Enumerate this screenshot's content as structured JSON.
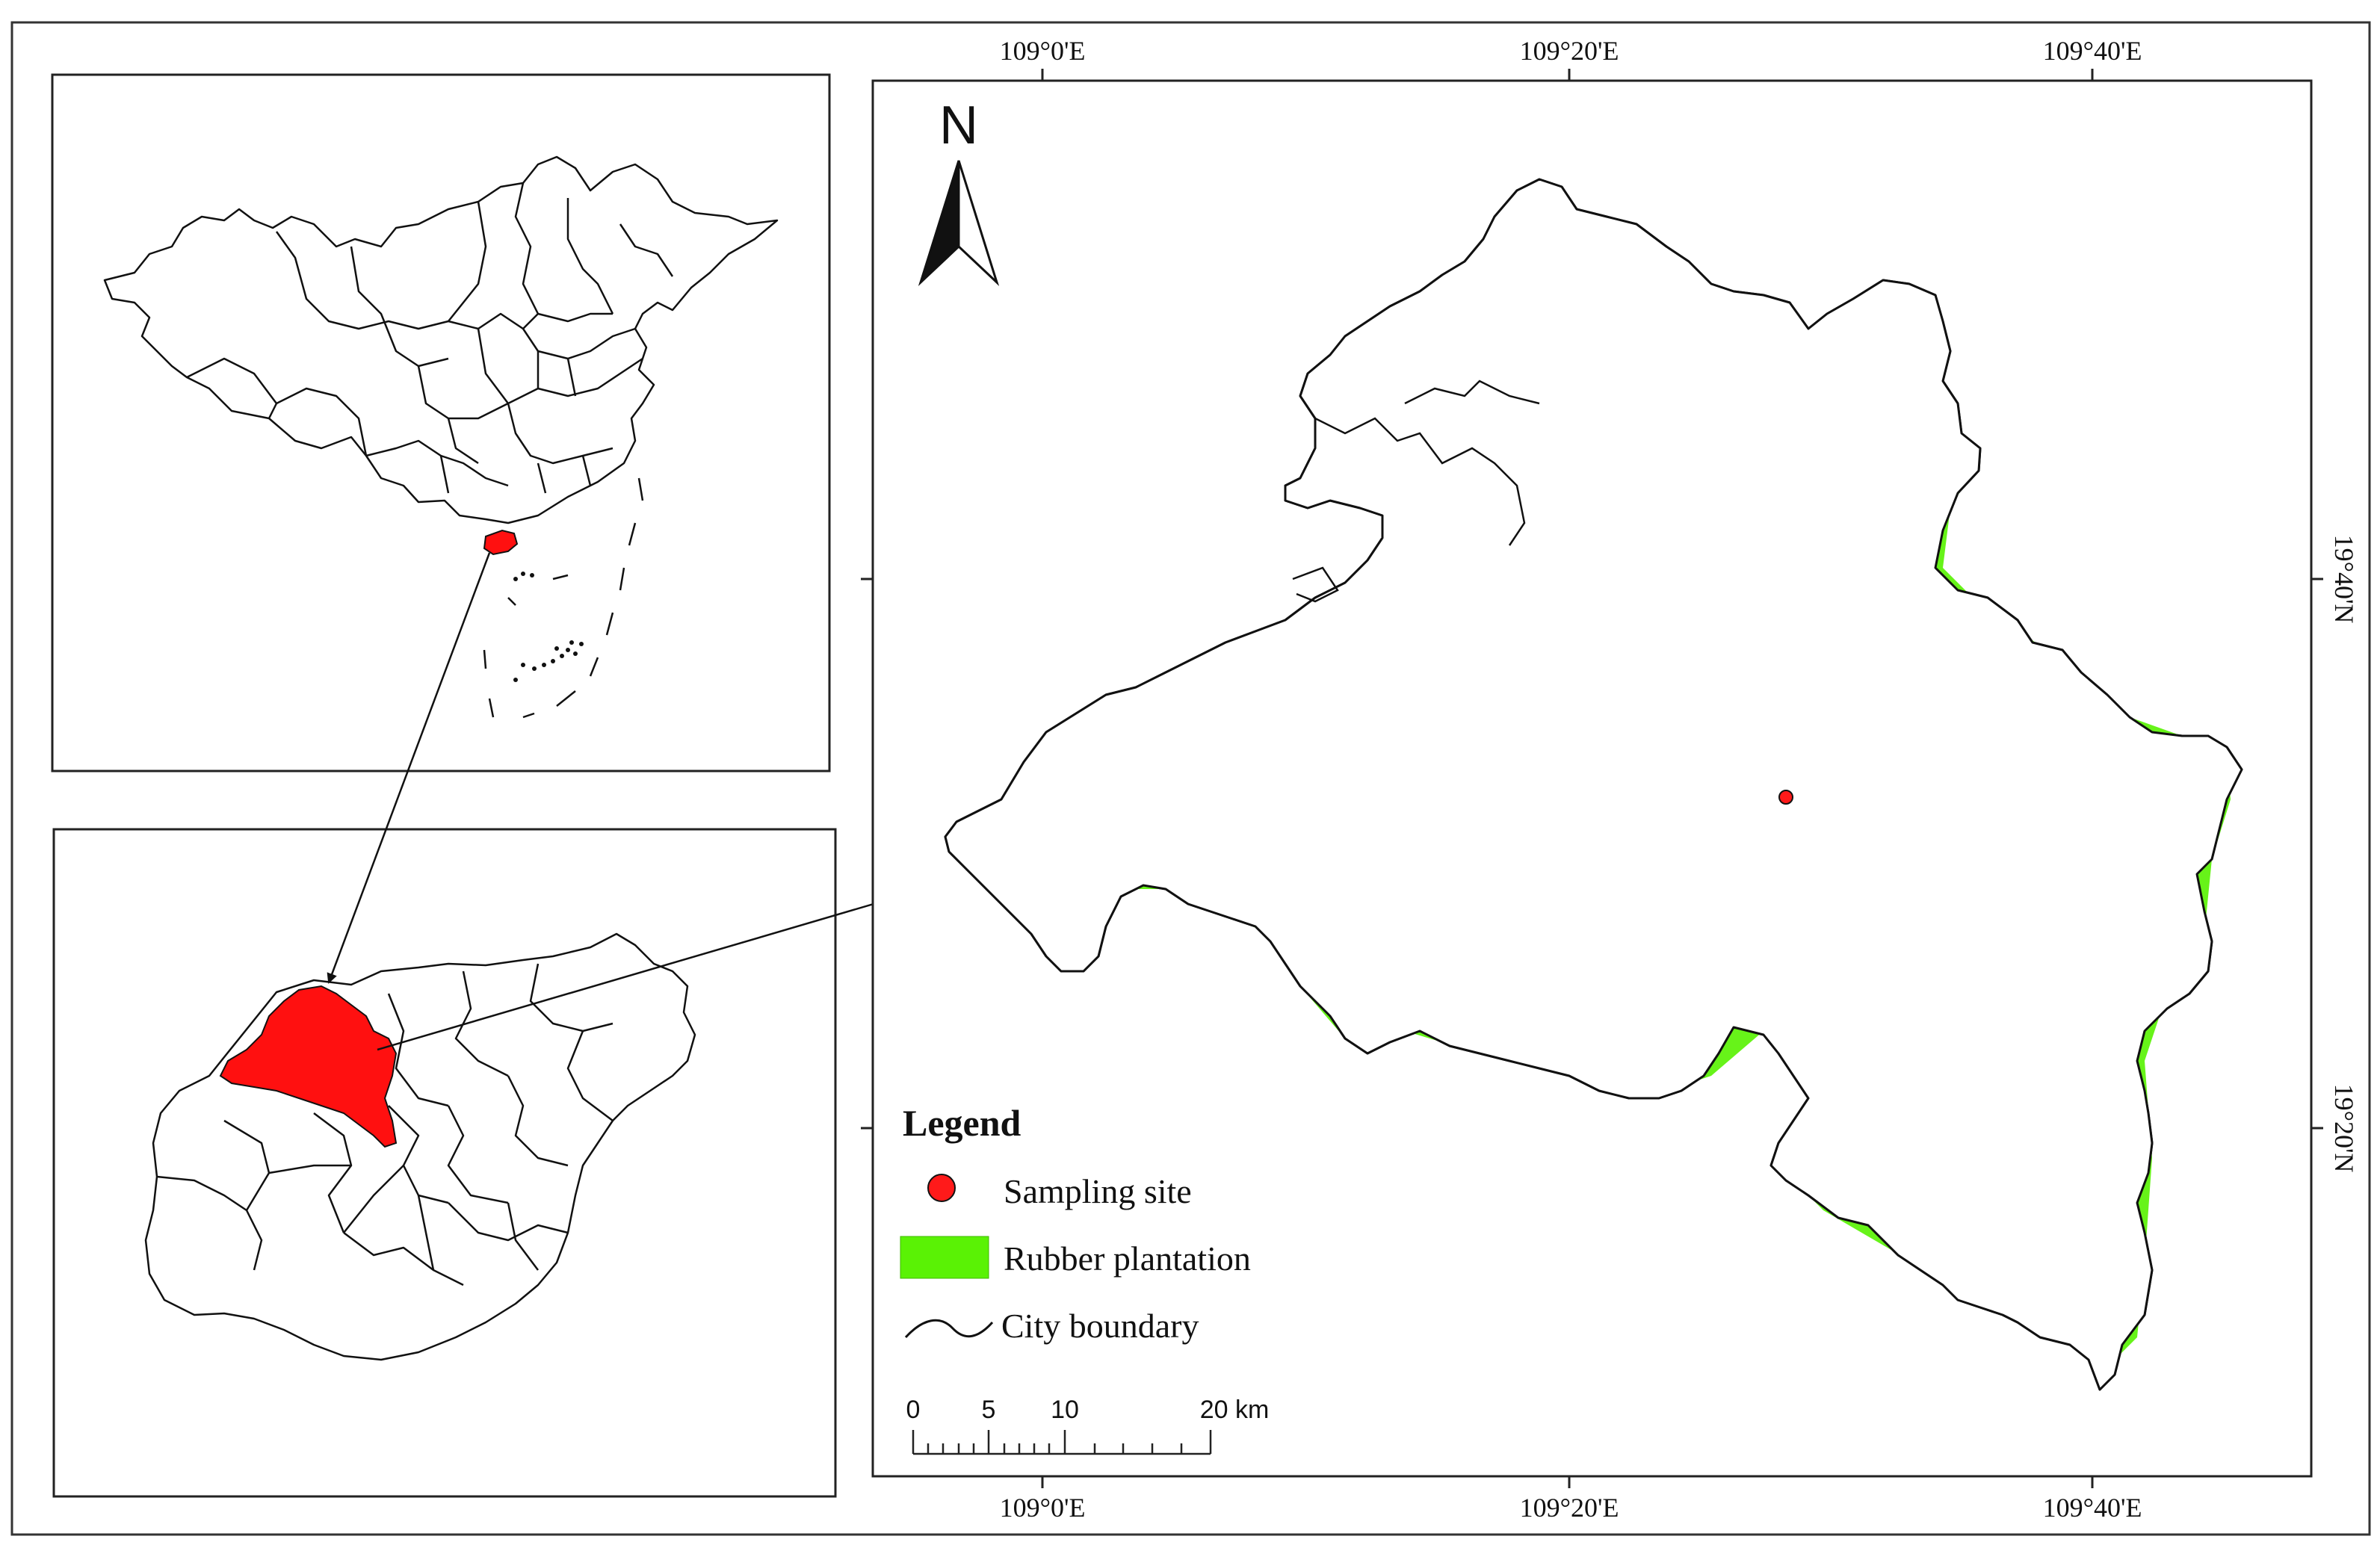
{
  "north_arrow": {
    "label": "N"
  },
  "graticule": {
    "top_labels": [
      "109°0'E",
      "109°20'E",
      "109°40'E"
    ],
    "bottom_labels": [
      "109°0'E",
      "109°20'E",
      "109°40'E"
    ],
    "right_labels": [
      "19°40'N",
      "19°20'N"
    ]
  },
  "legend": {
    "title": "Legend",
    "items": [
      {
        "label": "Sampling site",
        "symbol": "red-dot"
      },
      {
        "label": "Rubber plantation",
        "symbol": "green-patch"
      },
      {
        "label": "City boundary",
        "symbol": "black-line"
      }
    ]
  },
  "scale_bar": {
    "ticks": [
      "0",
      "5",
      "10",
      "20 km"
    ]
  },
  "colors": {
    "rubber_plantation": "#5af205",
    "sampling_site": "#ff1a1a",
    "highlight_region": "#ff1010",
    "boundary": "#111111",
    "frame": "#222222"
  }
}
